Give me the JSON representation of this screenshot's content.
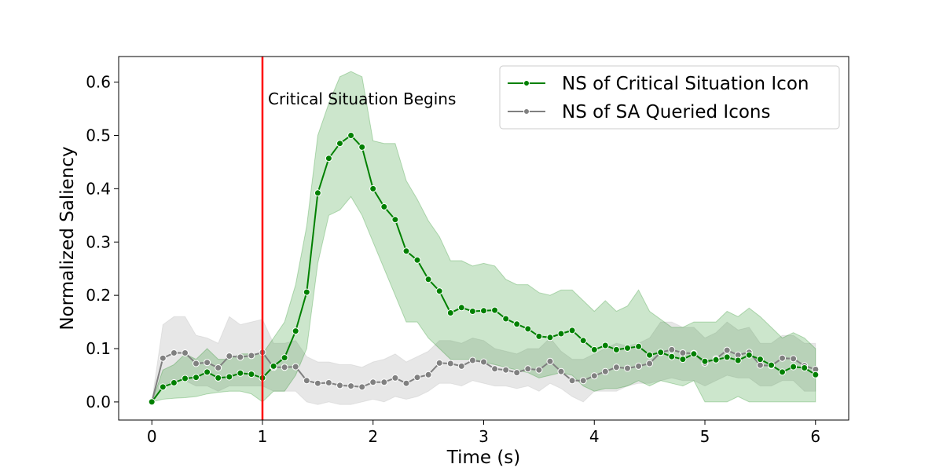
{
  "chart_data": {
    "type": "line",
    "title": "",
    "xlabel": "Time (s)",
    "ylabel": "Normalized Saliency",
    "xlim": [
      -0.3,
      6.3
    ],
    "ylim": [
      -0.034,
      0.648
    ],
    "xticks": [
      0,
      1,
      2,
      3,
      4,
      5,
      6
    ],
    "yticks": [
      0.0,
      0.1,
      0.2,
      0.3,
      0.4,
      0.5,
      0.6
    ],
    "xtick_labels": [
      "0",
      "1",
      "2",
      "3",
      "4",
      "5",
      "6"
    ],
    "ytick_labels": [
      "0.0",
      "0.1",
      "0.2",
      "0.3",
      "0.4",
      "0.5",
      "0.6"
    ],
    "grid": false,
    "legend_position": "top-right",
    "x": [
      0,
      0.1,
      0.2,
      0.3,
      0.4,
      0.5,
      0.6,
      0.7,
      0.8,
      0.9,
      1.0,
      1.1,
      1.2,
      1.3,
      1.4,
      1.5,
      1.6,
      1.7,
      1.8,
      1.9,
      2.0,
      2.1,
      2.2,
      2.3,
      2.4,
      2.5,
      2.6,
      2.7,
      2.8,
      2.9,
      3.0,
      3.1,
      3.2,
      3.3,
      3.4,
      3.5,
      3.6,
      3.7,
      3.8,
      3.9,
      4.0,
      4.1,
      4.2,
      4.3,
      4.4,
      4.5,
      4.6,
      4.7,
      4.8,
      4.9,
      5.0,
      5.1,
      5.2,
      5.3,
      5.4,
      5.5,
      5.6,
      5.7,
      5.8,
      5.9,
      6.0
    ],
    "series": [
      {
        "name": "NS of Critical Situation Icon",
        "color": "#008000",
        "band_color": "#008000",
        "values": [
          0.0,
          0.028,
          0.036,
          0.044,
          0.046,
          0.056,
          0.045,
          0.047,
          0.054,
          0.052,
          0.045,
          0.067,
          0.083,
          0.133,
          0.206,
          0.392,
          0.457,
          0.485,
          0.5,
          0.478,
          0.4,
          0.366,
          0.342,
          0.283,
          0.266,
          0.23,
          0.208,
          0.167,
          0.177,
          0.17,
          0.171,
          0.172,
          0.156,
          0.146,
          0.137,
          0.123,
          0.121,
          0.128,
          0.134,
          0.115,
          0.098,
          0.106,
          0.098,
          0.101,
          0.104,
          0.088,
          0.093,
          0.085,
          0.08,
          0.09,
          0.076,
          0.079,
          0.084,
          0.078,
          0.088,
          0.08,
          0.069,
          0.056,
          0.066,
          0.064,
          0.051
        ],
        "lower": [
          0.0,
          0.005,
          0.007,
          0.008,
          0.01,
          0.015,
          0.018,
          0.02,
          0.02,
          0.015,
          0.0,
          0.02,
          0.02,
          0.05,
          0.1,
          0.26,
          0.35,
          0.36,
          0.385,
          0.35,
          0.3,
          0.25,
          0.2,
          0.15,
          0.15,
          0.12,
          0.1,
          0.08,
          0.08,
          0.08,
          0.075,
          0.07,
          0.065,
          0.06,
          0.055,
          0.045,
          0.05,
          0.055,
          0.05,
          0.03,
          0.02,
          0.025,
          0.025,
          0.03,
          0.04,
          0.03,
          0.04,
          0.035,
          0.03,
          0.04,
          0.0,
          0.0,
          0.0,
          0.01,
          0.0,
          0.0,
          0.0,
          0.0,
          0.0,
          0.0,
          0.0
        ],
        "upper": [
          0.0,
          0.06,
          0.07,
          0.09,
          0.08,
          0.1,
          0.08,
          0.08,
          0.09,
          0.09,
          0.09,
          0.12,
          0.15,
          0.22,
          0.33,
          0.5,
          0.56,
          0.61,
          0.62,
          0.61,
          0.49,
          0.485,
          0.485,
          0.415,
          0.38,
          0.34,
          0.31,
          0.265,
          0.265,
          0.255,
          0.26,
          0.255,
          0.23,
          0.22,
          0.22,
          0.205,
          0.2,
          0.21,
          0.21,
          0.19,
          0.17,
          0.19,
          0.17,
          0.18,
          0.21,
          0.17,
          0.155,
          0.14,
          0.14,
          0.15,
          0.15,
          0.15,
          0.17,
          0.16,
          0.176,
          0.16,
          0.14,
          0.12,
          0.13,
          0.12,
          0.1
        ]
      },
      {
        "name": "NS of SA Queried Icons",
        "color": "#808080",
        "band_color": "#b0b0b0",
        "values": [
          0.0,
          0.082,
          0.092,
          0.092,
          0.072,
          0.074,
          0.064,
          0.086,
          0.084,
          0.087,
          0.093,
          0.065,
          0.065,
          0.066,
          0.04,
          0.035,
          0.036,
          0.031,
          0.03,
          0.028,
          0.037,
          0.037,
          0.045,
          0.035,
          0.046,
          0.051,
          0.073,
          0.072,
          0.067,
          0.078,
          0.075,
          0.062,
          0.06,
          0.055,
          0.062,
          0.06,
          0.076,
          0.057,
          0.04,
          0.04,
          0.049,
          0.057,
          0.065,
          0.063,
          0.067,
          0.072,
          0.093,
          0.098,
          0.092,
          0.091,
          0.073,
          0.081,
          0.097,
          0.088,
          0.093,
          0.069,
          0.068,
          0.082,
          0.081,
          0.068,
          0.061
        ],
        "lower": [
          0.0,
          0.03,
          0.04,
          0.04,
          0.03,
          0.03,
          0.02,
          0.03,
          0.03,
          0.03,
          0.03,
          0.02,
          0.02,
          0.02,
          0.0,
          -0.005,
          0.0,
          -0.005,
          -0.005,
          0.0,
          0.005,
          0.0,
          0.01,
          0.005,
          0.01,
          0.02,
          0.035,
          0.035,
          0.03,
          0.04,
          0.035,
          0.03,
          0.03,
          0.025,
          0.03,
          0.02,
          0.035,
          0.025,
          0.01,
          0.0,
          0.02,
          0.02,
          0.02,
          0.03,
          0.035,
          0.035,
          0.04,
          0.045,
          0.04,
          0.04,
          0.03,
          0.04,
          0.05,
          0.045,
          0.045,
          0.03,
          0.03,
          0.04,
          0.04,
          0.02,
          0.02
        ],
        "upper": [
          0.0,
          0.145,
          0.16,
          0.16,
          0.125,
          0.12,
          0.11,
          0.16,
          0.145,
          0.15,
          0.155,
          0.11,
          0.11,
          0.115,
          0.085,
          0.075,
          0.075,
          0.07,
          0.07,
          0.065,
          0.075,
          0.08,
          0.09,
          0.075,
          0.085,
          0.095,
          0.115,
          0.115,
          0.11,
          0.12,
          0.115,
          0.1,
          0.095,
          0.09,
          0.1,
          0.1,
          0.12,
          0.095,
          0.08,
          0.08,
          0.09,
          0.1,
          0.11,
          0.105,
          0.11,
          0.12,
          0.15,
          0.15,
          0.14,
          0.14,
          0.12,
          0.13,
          0.15,
          0.135,
          0.14,
          0.11,
          0.11,
          0.125,
          0.125,
          0.11,
          0.11
        ]
      }
    ],
    "annotations": [
      {
        "type": "vline",
        "x": 1.0,
        "color": "#ff0000",
        "text": "Critical Situation Begins"
      }
    ]
  }
}
